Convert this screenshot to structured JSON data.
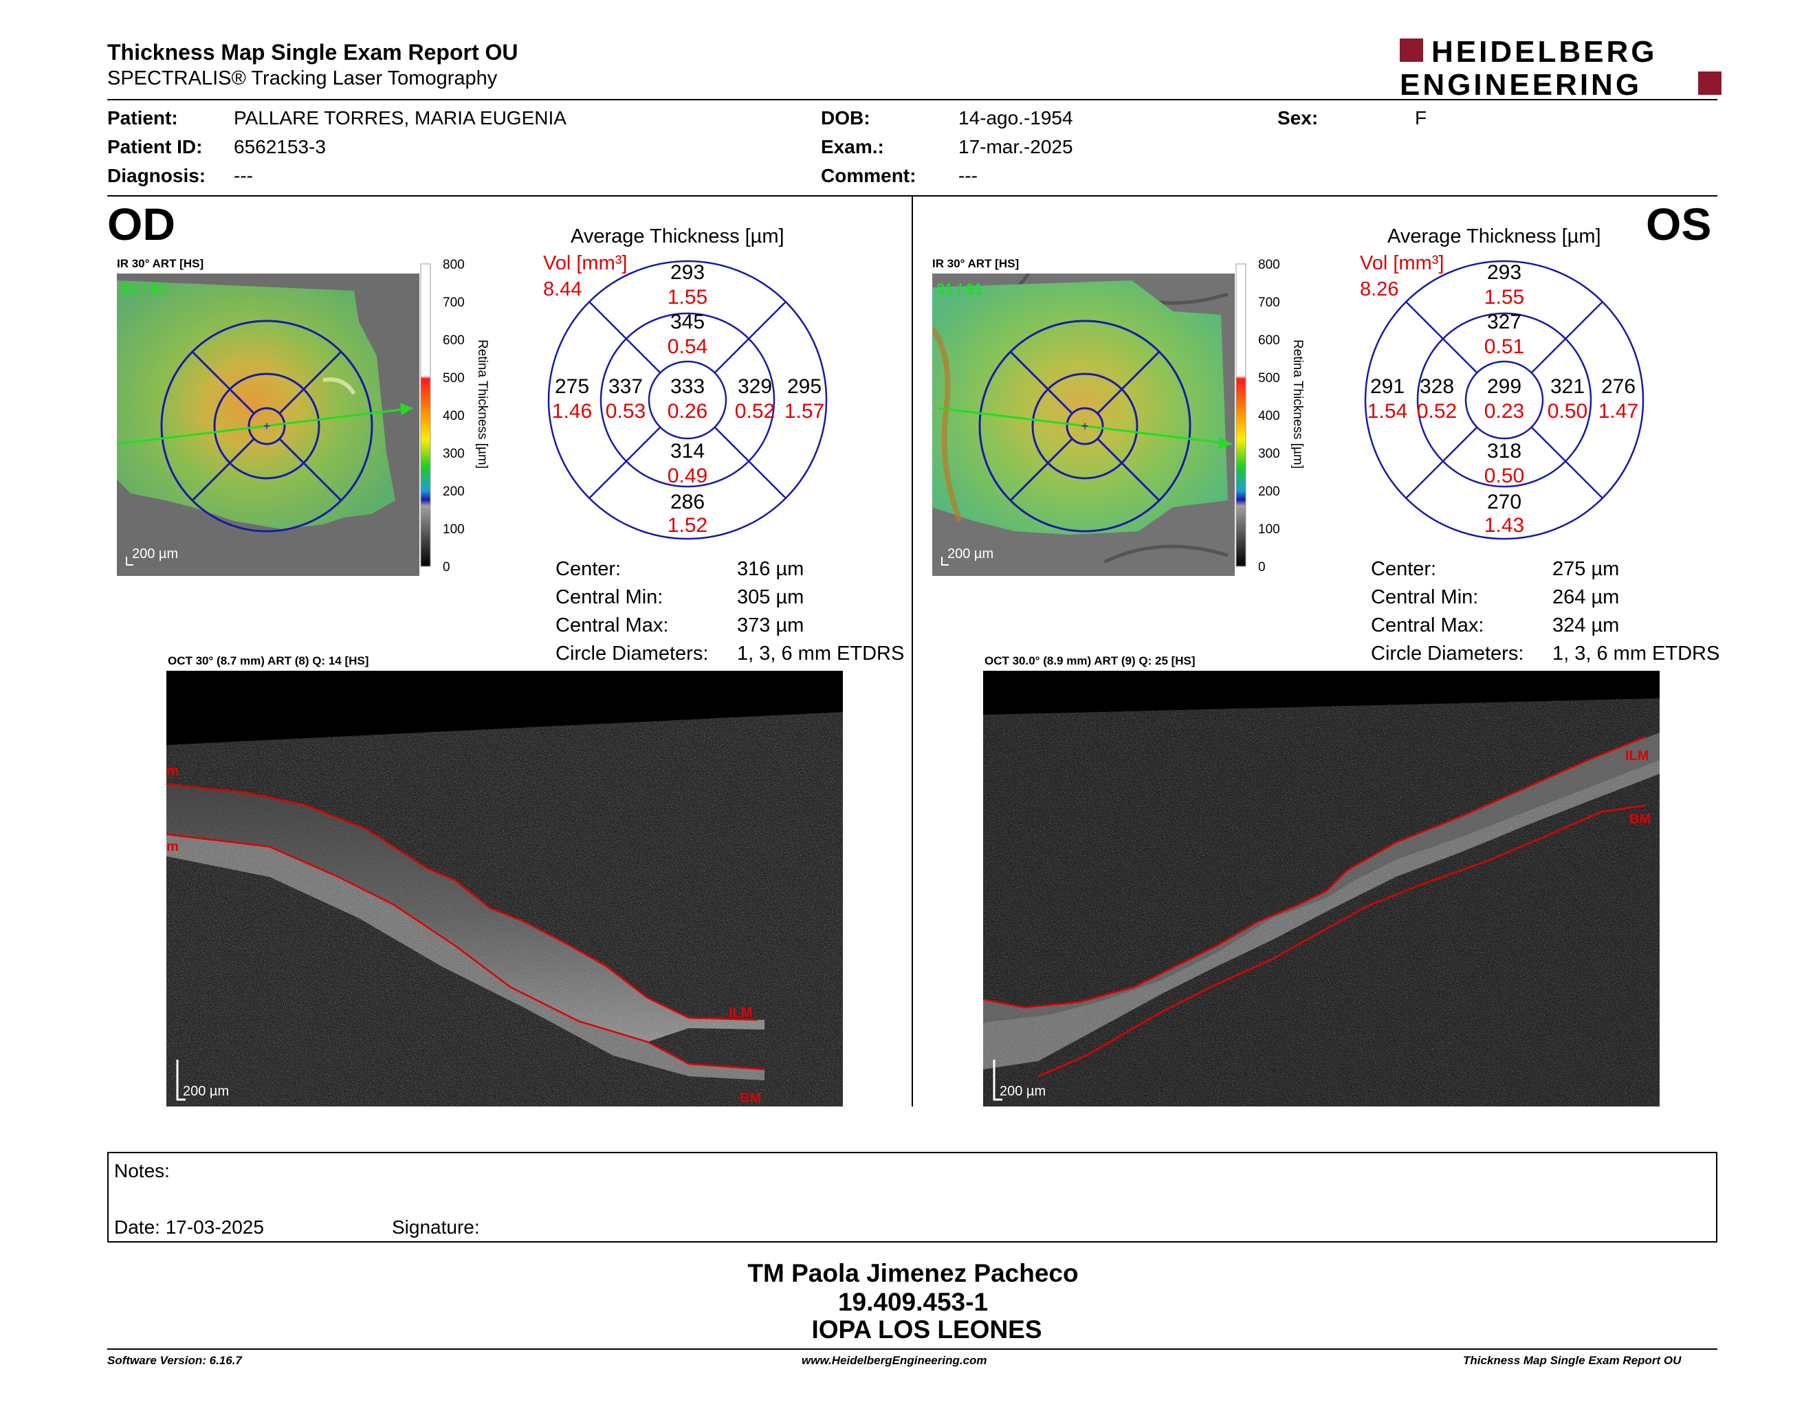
{
  "header": {
    "title": "Thickness Map Single Exam Report OU",
    "subtitle": "SPECTRALIS® Tracking Laser Tomography",
    "logo_line1": "HEIDELBERG",
    "logo_line2": "ENGINEERING"
  },
  "patient": {
    "patient_label": "Patient:",
    "patient_value": "PALLARE TORRES, MARIA EUGENIA",
    "id_label": "Patient ID:",
    "id_value": "6562153-3",
    "diagnosis_label": "Diagnosis:",
    "diagnosis_value": "---",
    "dob_label": "DOB:",
    "dob_value": "14-ago.-1954",
    "exam_label": "Exam.:",
    "exam_value": "17-mar.-2025",
    "comment_label": "Comment:",
    "comment_value": "---",
    "sex_label": "Sex:",
    "sex_value": "F"
  },
  "colors": {
    "grid_blue": "#1a1aa8",
    "vol_red": "#e00000",
    "brand_red": "#8c1a2c",
    "scan_green": "#22dd22"
  },
  "od": {
    "eye": "OD",
    "ir_caption": "IR 30° ART [HS]",
    "frame": "31 / 61",
    "scale": "200 µm",
    "avg_title": "Average Thickness [µm]",
    "vol_label": "Vol [mm³]",
    "vol_total": "8.44",
    "sectors": {
      "center": {
        "t": "333",
        "v": "0.26"
      },
      "inner_sup": {
        "t": "345",
        "v": "0.54"
      },
      "inner_nas": {
        "t": "337",
        "v": "0.53"
      },
      "inner_tmp": {
        "t": "329",
        "v": "0.52"
      },
      "inner_inf": {
        "t": "314",
        "v": "0.49"
      },
      "outer_sup": {
        "t": "293",
        "v": "1.55"
      },
      "outer_nas": {
        "t": "275",
        "v": "1.46"
      },
      "outer_tmp": {
        "t": "295",
        "v": "1.57"
      },
      "outer_inf": {
        "t": "286",
        "v": "1.52"
      }
    },
    "stats": [
      {
        "label": "Center:",
        "value": "316 µm"
      },
      {
        "label": "Central Min:",
        "value": "305 µm"
      },
      {
        "label": "Central Max:",
        "value": "373 µm"
      },
      {
        "label": "Circle Diameters:",
        "value": "1, 3, 6 mm ETDRS"
      }
    ],
    "oct_caption": "OCT 30° (8.7 mm) ART (8) Q: 14 [HS]",
    "oct_scale": "200 µm",
    "ilm": "ILM",
    "bm": "BM",
    "ilm_left": "m",
    "bm_left": "m"
  },
  "os": {
    "eye": "OS",
    "ir_caption": "IR 30° ART [HS]",
    "frame": "31 / 61",
    "scale": "200 µm",
    "avg_title": "Average Thickness [µm]",
    "vol_label": "Vol [mm³]",
    "vol_total": "8.26",
    "sectors": {
      "center": {
        "t": "299",
        "v": "0.23"
      },
      "inner_sup": {
        "t": "327",
        "v": "0.51"
      },
      "inner_nas": {
        "t": "328",
        "v": "0.52"
      },
      "inner_tmp": {
        "t": "321",
        "v": "0.50"
      },
      "inner_inf": {
        "t": "318",
        "v": "0.50"
      },
      "outer_sup": {
        "t": "293",
        "v": "1.55"
      },
      "outer_nas": {
        "t": "291",
        "v": "1.54"
      },
      "outer_tmp": {
        "t": "276",
        "v": "1.47"
      },
      "outer_inf": {
        "t": "270",
        "v": "1.43"
      }
    },
    "stats": [
      {
        "label": "Center:",
        "value": "275 µm"
      },
      {
        "label": "Central Min:",
        "value": "264 µm"
      },
      {
        "label": "Central Max:",
        "value": "324 µm"
      },
      {
        "label": "Circle Diameters:",
        "value": "1, 3, 6 mm ETDRS"
      }
    ],
    "oct_caption": "OCT 30.0° (8.9 mm) ART (9) Q: 25 [HS]",
    "oct_scale": "200 µm",
    "ilm": "ILM",
    "bm": "BM"
  },
  "colorbar": {
    "ticks": [
      "800",
      "700",
      "600",
      "500",
      "400",
      "300",
      "200",
      "100",
      "0"
    ],
    "label": "Retina Thickness [µm]"
  },
  "notes": {
    "notes_label": "Notes:",
    "date_label": "Date: 17-03-2025",
    "signature_label": "Signature:"
  },
  "signature": {
    "name": "TM Paola Jimenez Pacheco",
    "id": "19.409.453-1",
    "org": "IOPA LOS LEONES"
  },
  "footer": {
    "software": "Software Version: 6.16.7",
    "url": "www.HeidelbergEngineering.com",
    "report": "Thickness Map Single Exam Report OU"
  }
}
